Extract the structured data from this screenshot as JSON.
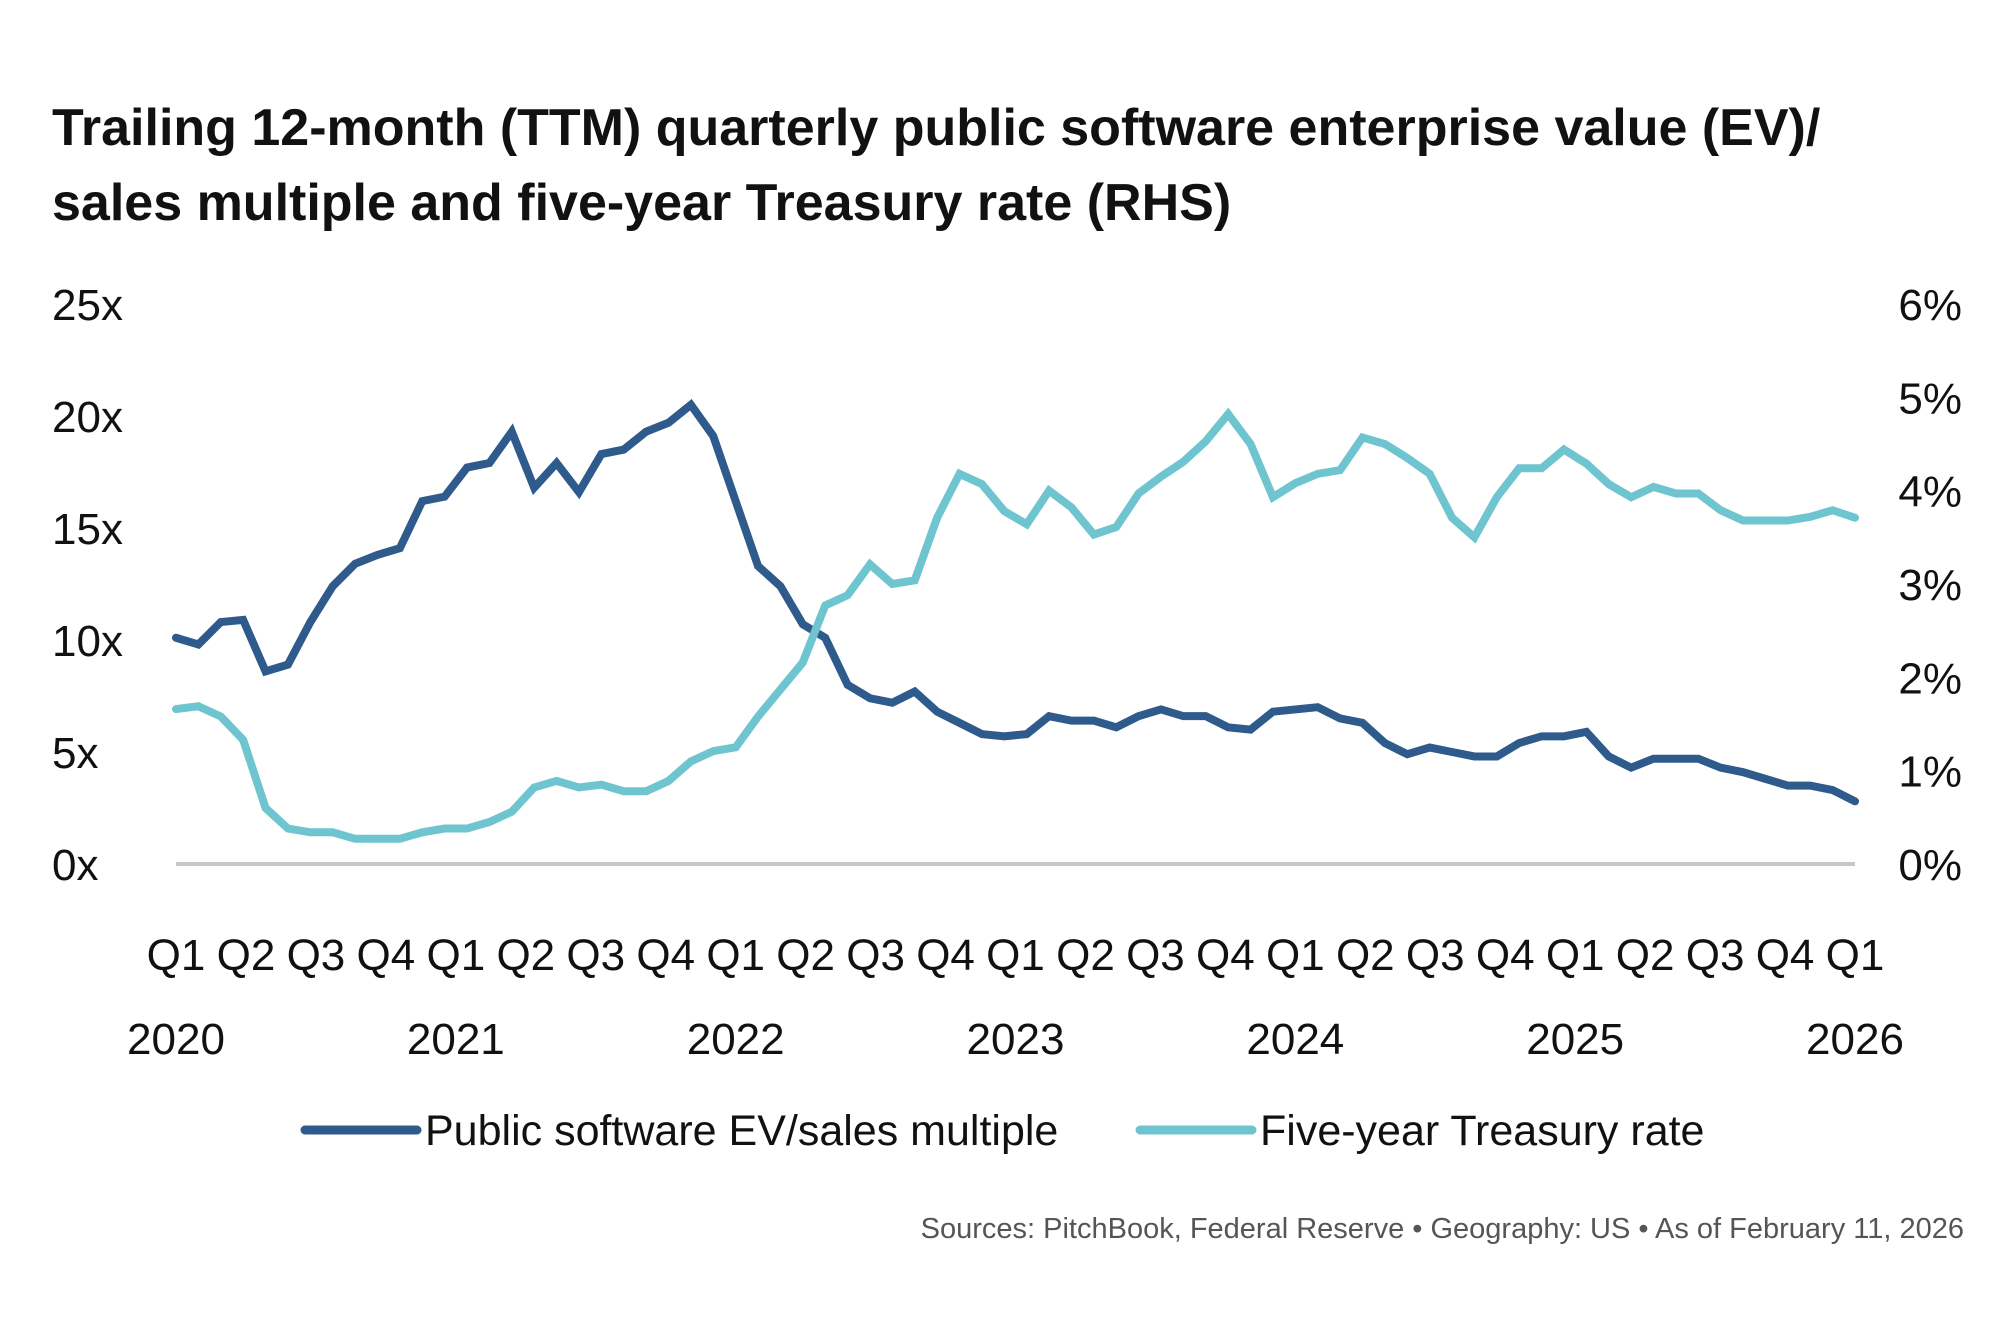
{
  "chart_data": {
    "type": "line",
    "title_lines": [
      "Trailing 12-month (TTM) quarterly public software enterprise value (EV)/",
      "sales multiple and five-year Treasury rate (RHS)"
    ],
    "x_quarter_ticks": [
      "Q1",
      "Q2",
      "Q3",
      "Q4",
      "Q1",
      "Q2",
      "Q3",
      "Q4",
      "Q1",
      "Q2",
      "Q3",
      "Q4",
      "Q1",
      "Q2",
      "Q3",
      "Q4",
      "Q1",
      "Q2",
      "Q3",
      "Q4",
      "Q1",
      "Q2",
      "Q3",
      "Q4",
      "Q1"
    ],
    "x_year_ticks": [
      {
        "label": "2020",
        "quarter_index": 0
      },
      {
        "label": "2021",
        "quarter_index": 4
      },
      {
        "label": "2022",
        "quarter_index": 8
      },
      {
        "label": "2023",
        "quarter_index": 12
      },
      {
        "label": "2024",
        "quarter_index": 16
      },
      {
        "label": "2025",
        "quarter_index": 20
      },
      {
        "label": "2026",
        "quarter_index": 24
      }
    ],
    "y_left": {
      "ticks": [
        "0x",
        "5x",
        "10x",
        "15x",
        "20x",
        "25x"
      ],
      "range": [
        0,
        25
      ]
    },
    "y_right": {
      "ticks": [
        "0%",
        "1%",
        "2%",
        "3%",
        "4%",
        "5%",
        "6%"
      ],
      "range": [
        0,
        6
      ]
    },
    "grid": false,
    "legend_placement": "bottom",
    "series": [
      {
        "name": "Public software EV/sales multiple",
        "axis": "left",
        "color": "#2e5b8c",
        "values": [
          10.1,
          9.8,
          10.8,
          10.9,
          8.6,
          8.9,
          10.8,
          12.4,
          13.4,
          13.8,
          14.1,
          16.2,
          16.4,
          17.7,
          17.9,
          19.3,
          16.8,
          17.9,
          16.6,
          18.3,
          18.5,
          19.3,
          19.7,
          20.5,
          19.1,
          16.2,
          13.3,
          12.4,
          10.7,
          10.1,
          8.0,
          7.4,
          7.2,
          7.7,
          6.8,
          6.3,
          5.8,
          5.7,
          5.8,
          6.6,
          6.4,
          6.4,
          6.1,
          6.6,
          6.9,
          6.6,
          6.6,
          6.1,
          6.0,
          6.8,
          6.9,
          7.0,
          6.5,
          6.3,
          5.4,
          4.9,
          5.2,
          5.0,
          4.8,
          4.8,
          5.4,
          5.7,
          5.7,
          5.9,
          4.8,
          4.3,
          4.7,
          4.7,
          4.7,
          4.3,
          4.1,
          3.8,
          3.5,
          3.5,
          3.3,
          2.8
        ]
      },
      {
        "name": "Five-year Treasury rate",
        "axis": "right",
        "color": "#6fc5cf",
        "values": [
          1.66,
          1.69,
          1.58,
          1.33,
          0.6,
          0.38,
          0.34,
          0.34,
          0.27,
          0.27,
          0.27,
          0.34,
          0.38,
          0.38,
          0.45,
          0.56,
          0.82,
          0.89,
          0.82,
          0.85,
          0.78,
          0.78,
          0.89,
          1.1,
          1.21,
          1.25,
          1.58,
          1.87,
          2.16,
          2.77,
          2.88,
          3.21,
          3.0,
          3.04,
          3.71,
          4.18,
          4.07,
          3.78,
          3.64,
          4.0,
          3.82,
          3.53,
          3.61,
          3.97,
          4.15,
          4.31,
          4.53,
          4.82,
          4.5,
          3.93,
          4.08,
          4.18,
          4.22,
          4.57,
          4.5,
          4.35,
          4.18,
          3.71,
          3.5,
          3.93,
          4.24,
          4.24,
          4.44,
          4.29,
          4.07,
          3.93,
          4.04,
          3.97,
          3.97,
          3.79,
          3.68,
          3.68,
          3.68,
          3.72,
          3.79,
          3.71
        ]
      }
    ],
    "baseline_color": "#c8c8c0"
  },
  "footer": {
    "sources": "Sources: PitchBook, Federal Reserve  •  Geography: US  •  As of February 11, 2026"
  }
}
